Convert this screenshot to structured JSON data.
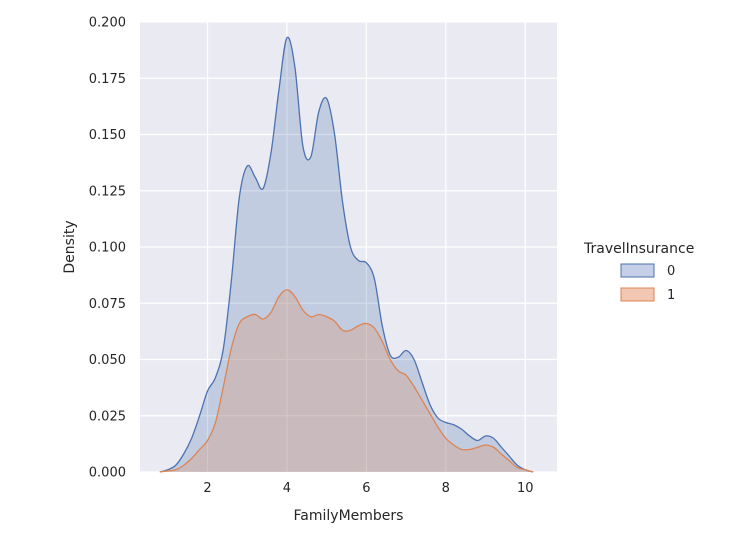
{
  "chart_data": {
    "type": "area",
    "xlabel": "FamilyMembers",
    "ylabel": "Density",
    "xlim": [
      0.3,
      10.8
    ],
    "ylim": [
      0,
      0.2
    ],
    "xticks": [
      2,
      4,
      6,
      8,
      10
    ],
    "yticks": [
      0.0,
      0.025,
      0.05,
      0.075,
      0.1,
      0.125,
      0.15,
      0.175,
      0.2
    ],
    "ytick_labels": [
      "0.000",
      "0.025",
      "0.050",
      "0.075",
      "0.100",
      "0.125",
      "0.150",
      "0.175",
      "0.200"
    ],
    "grid": true,
    "legend": {
      "title": "TravelInsurance",
      "placement": "right"
    },
    "series": [
      {
        "name": "0",
        "color": "#4c72b0",
        "fill": "#c5cfe8",
        "x": [
          0.8,
          1.0,
          1.2,
          1.4,
          1.6,
          1.8,
          2.0,
          2.2,
          2.4,
          2.6,
          2.8,
          3.0,
          3.2,
          3.4,
          3.6,
          3.8,
          4.0,
          4.2,
          4.4,
          4.6,
          4.8,
          5.0,
          5.2,
          5.4,
          5.6,
          5.8,
          6.0,
          6.2,
          6.4,
          6.6,
          6.8,
          7.0,
          7.2,
          7.4,
          7.6,
          7.8,
          8.0,
          8.2,
          8.4,
          8.6,
          8.8,
          9.0,
          9.2,
          9.4,
          9.6,
          9.8,
          10.0,
          10.2
        ],
        "y": [
          0.0,
          0.001,
          0.003,
          0.008,
          0.015,
          0.025,
          0.036,
          0.042,
          0.055,
          0.085,
          0.122,
          0.136,
          0.131,
          0.126,
          0.142,
          0.17,
          0.193,
          0.18,
          0.145,
          0.14,
          0.16,
          0.166,
          0.15,
          0.12,
          0.1,
          0.094,
          0.093,
          0.086,
          0.065,
          0.052,
          0.051,
          0.054,
          0.05,
          0.04,
          0.03,
          0.024,
          0.022,
          0.021,
          0.019,
          0.016,
          0.014,
          0.016,
          0.015,
          0.011,
          0.007,
          0.003,
          0.001,
          0.0
        ]
      },
      {
        "name": "1",
        "color": "#dd8452",
        "fill": "#f1c7b3",
        "x": [
          0.8,
          1.0,
          1.2,
          1.4,
          1.6,
          1.8,
          2.0,
          2.2,
          2.4,
          2.6,
          2.8,
          3.0,
          3.2,
          3.4,
          3.6,
          3.8,
          4.0,
          4.2,
          4.4,
          4.6,
          4.8,
          5.0,
          5.2,
          5.4,
          5.6,
          5.8,
          6.0,
          6.2,
          6.4,
          6.6,
          6.8,
          7.0,
          7.2,
          7.4,
          7.6,
          7.8,
          8.0,
          8.2,
          8.4,
          8.6,
          8.8,
          9.0,
          9.2,
          9.4,
          9.6,
          9.8,
          10.0,
          10.2
        ],
        "y": [
          0.0,
          0.0005,
          0.001,
          0.003,
          0.006,
          0.01,
          0.014,
          0.022,
          0.038,
          0.055,
          0.066,
          0.069,
          0.07,
          0.068,
          0.071,
          0.078,
          0.081,
          0.078,
          0.072,
          0.069,
          0.07,
          0.069,
          0.067,
          0.063,
          0.063,
          0.065,
          0.066,
          0.064,
          0.058,
          0.05,
          0.045,
          0.043,
          0.038,
          0.032,
          0.026,
          0.02,
          0.015,
          0.012,
          0.01,
          0.01,
          0.011,
          0.012,
          0.011,
          0.008,
          0.005,
          0.002,
          0.001,
          0.0
        ]
      }
    ]
  }
}
